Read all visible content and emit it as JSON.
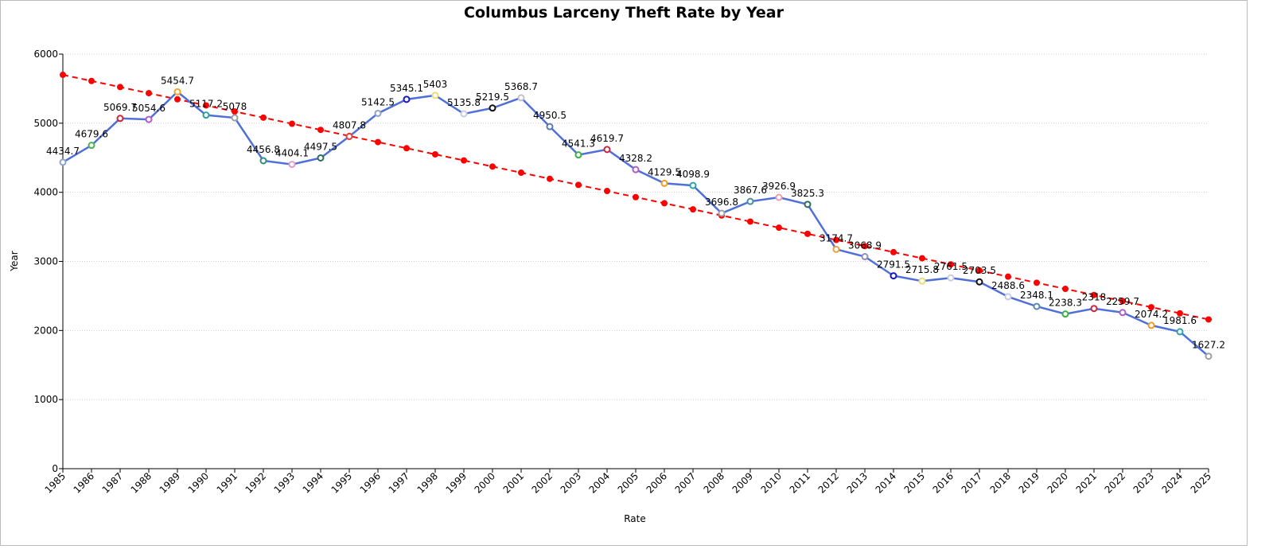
{
  "chart_data": {
    "type": "line",
    "title": "Columbus Larceny Theft Rate by Year",
    "x_label": "Rate",
    "y_label": "Year",
    "categories": [
      "1985",
      "1986",
      "1987",
      "1988",
      "1989",
      "1990",
      "1991",
      "1992",
      "1993",
      "1994",
      "1995",
      "1996",
      "1997",
      "1998",
      "1999",
      "2000",
      "2001",
      "2002",
      "2003",
      "2004",
      "2005",
      "2006",
      "2007",
      "2008",
      "2009",
      "2010",
      "2011",
      "2012",
      "2013",
      "2014",
      "2015",
      "2016",
      "2017",
      "2018",
      "2019",
      "2020",
      "2021",
      "2022",
      "2023",
      "2024",
      "2025"
    ],
    "series": [
      {
        "color": "#4f6fd9",
        "labels": true,
        "dashed": false,
        "values": [
          4434.7,
          4679.6,
          5069.7,
          5054.6,
          5454.7,
          5117.2,
          5078,
          4456.8,
          4404.1,
          4497.5,
          4807.8,
          5142.5,
          5345.1,
          5403,
          5135.8,
          5219.5,
          5368.7,
          4950.5,
          4541.3,
          4619.7,
          4328.2,
          4129.5,
          4098.9,
          3696.8,
          3867.6,
          3926.9,
          3825.3,
          3174.7,
          3068.9,
          2791.5,
          2715.8,
          2761.5,
          2703.5,
          2488.6,
          2348.1,
          2238.3,
          2318,
          2259.7,
          2074.2,
          1981.6,
          1627.2
        ],
        "marker_colors": [
          "#8fa3c8",
          "#4caf50",
          "#d0243c",
          "#b25cc8",
          "#f5a623",
          "#2fa39a",
          "#9aa0a6",
          "#2f8f80",
          "#e29ac0",
          "#2e6b5a",
          "#e8413a",
          "#8fa3c8",
          "#1515d0",
          "#e8dc7a",
          "#c8cce0",
          "#111111",
          "#c0c0c8",
          "#5a7ab0",
          "#3cb043",
          "#d0243c",
          "#b25cc8",
          "#f59a23",
          "#2fa3a3",
          "#9aa0a6",
          "#4a8fa0",
          "#e8a0b0",
          "#2e6b5a",
          "#e8a040",
          "#8f8fb8",
          "#1515d0",
          "#e8dc7a",
          "#c8cce0",
          "#111111",
          "#c8cce0",
          "#5a8ab0",
          "#3cb043",
          "#d0243c",
          "#b25cc8",
          "#f59a23",
          "#2fa3a3",
          "#9aa0a6"
        ]
      },
      {
        "color": "#ff0000",
        "labels": false,
        "dashed": true,
        "values": [
          5700,
          5611.5,
          5523,
          5434.5,
          5346,
          5257.5,
          5169,
          5080.5,
          4992,
          4903.5,
          4815,
          4726.5,
          4638,
          4549.5,
          4461,
          4372.5,
          4284,
          4195.5,
          4107,
          4018.5,
          3930,
          3841.5,
          3753,
          3664.5,
          3576,
          3487.5,
          3399,
          3310.5,
          3222,
          3133.5,
          3045,
          2956.5,
          2868,
          2779.5,
          2691,
          2602.5,
          2514,
          2425.5,
          2337,
          2248.5,
          2160
        ]
      }
    ],
    "ylim": [
      0,
      6000
    ],
    "yticks": [
      0,
      1000,
      2000,
      3000,
      4000,
      5000,
      6000
    ],
    "grid": true
  }
}
